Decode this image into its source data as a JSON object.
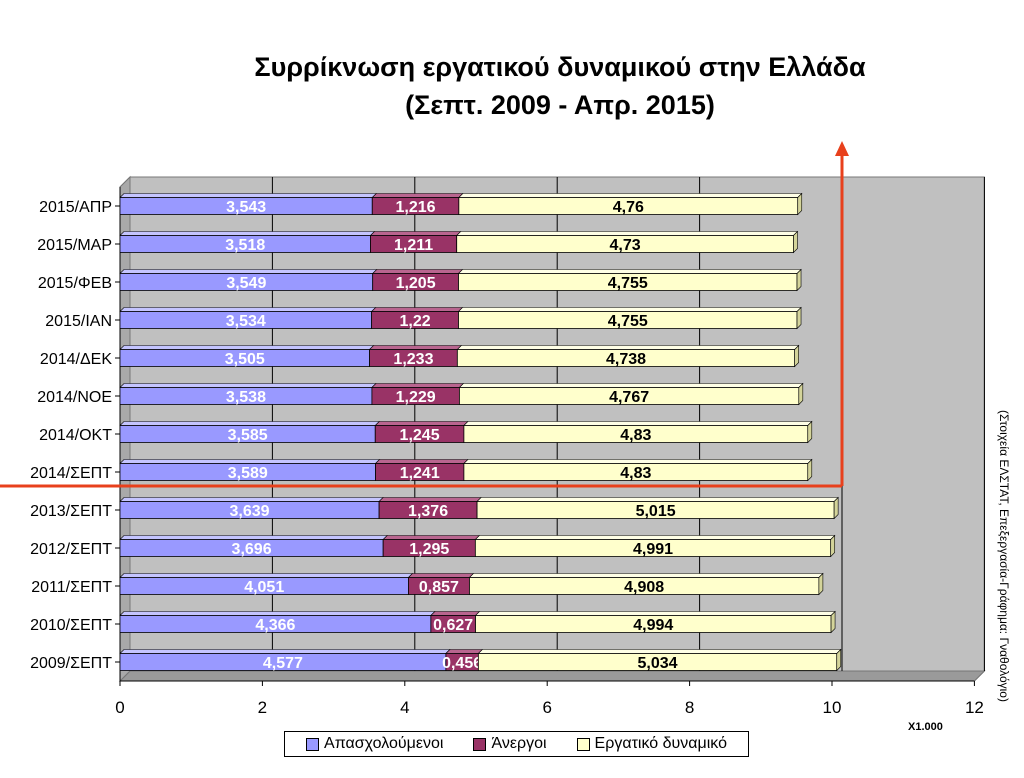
{
  "title_line1": "Συρρίκνωση εργατικού δυναμικού στην Ελλάδα",
  "title_line2": "(Σεπτ. 2009 - Απρ. 2015)",
  "side_note": "(Στοιχεία ΕΛΣΤΑΤ, Επεξεργασία-Γράφημα: Γναθολόγιο)",
  "multiplier": "X1.000",
  "colors": {
    "employed": "#9999ff",
    "unemployed": "#993366",
    "labor_force": "#ffffcc",
    "plot_bg": "#c0c0c0",
    "red_line": "#e8401c"
  },
  "chart_data": {
    "type": "bar",
    "orientation": "horizontal",
    "stacked": true,
    "title": "Συρρίκνωση εργατικού δυναμικού στην Ελλάδα (Σεπτ. 2009 - Απρ. 2015)",
    "categories": [
      "2009/ΣΕΠΤ",
      "2010/ΣΕΠΤ",
      "2011/ΣΕΠΤ",
      "2012/ΣΕΠΤ",
      "2013/ΣΕΠΤ",
      "2014/ΣΕΠΤ",
      "2014/ΟΚΤ",
      "2014/ΝΟΕ",
      "2014/ΔΕΚ",
      "2015/ΙΑΝ",
      "2015/ΦΕΒ",
      "2015/ΜΑΡ",
      "2015/ΑΠΡ"
    ],
    "series": [
      {
        "name": "Απασχολούμενοι",
        "values": [
          4.577,
          4.366,
          4.051,
          3.696,
          3.639,
          3.589,
          3.585,
          3.538,
          3.505,
          3.534,
          3.549,
          3.518,
          3.543
        ],
        "labels": [
          "4,577",
          "4,366",
          "4,051",
          "3,696",
          "3,639",
          "3,589",
          "3,585",
          "3,538",
          "3,505",
          "3,534",
          "3,549",
          "3,518",
          "3,543"
        ]
      },
      {
        "name": "Άνεργοι",
        "values": [
          0.456,
          0.627,
          0.857,
          1.295,
          1.376,
          1.241,
          1.245,
          1.229,
          1.233,
          1.22,
          1.205,
          1.211,
          1.216
        ],
        "labels": [
          "0,456",
          "0,627",
          "0,857",
          "1,295",
          "1,376",
          "1,241",
          "1,245",
          "1,229",
          "1,233",
          "1,22",
          "1,205",
          "1,211",
          "1,216"
        ]
      },
      {
        "name": "Εργατικό δυναμικό",
        "values": [
          5.034,
          4.994,
          4.908,
          4.991,
          5.015,
          4.83,
          4.83,
          4.767,
          4.738,
          4.755,
          4.755,
          4.73,
          4.76
        ],
        "labels": [
          "5,034",
          "4,994",
          "4,908",
          "4,991",
          "5,015",
          "4,83",
          "4,83",
          "4,767",
          "4,738",
          "4,755",
          "4,755",
          "4,73",
          "4,76"
        ]
      }
    ],
    "xlim": [
      0,
      12
    ],
    "xticks": [
      0,
      2,
      4,
      6,
      8,
      10,
      12
    ],
    "legend_position": "bottom",
    "grid": true,
    "annotation": "red line marking 2014/ΣΕΠΤ"
  }
}
